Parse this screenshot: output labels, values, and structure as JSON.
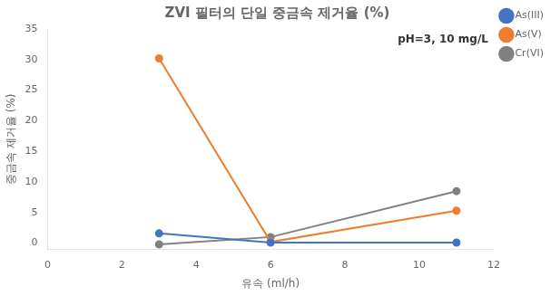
{
  "chart_data": {
    "type": "line",
    "title": "ZVI 필터의 단일 중금속 제거율 (%)",
    "xlabel": "유속 (ml/h)",
    "ylabel": "중금속 제거율 (%)",
    "annotation": "pH=3, 10 mg/L",
    "xlim": [
      0,
      12
    ],
    "ylim": [
      -1,
      35
    ],
    "xticks": [
      0,
      2,
      4,
      6,
      8,
      10,
      12
    ],
    "yticks": [
      0,
      5,
      10,
      15,
      20,
      25,
      30,
      35
    ],
    "grid": false,
    "legend": "upper right",
    "series": [
      {
        "name": "As(III)",
        "color": "#4472C4",
        "marker": "circle",
        "line_style": "solid",
        "x": [
          3,
          6,
          11
        ],
        "values": [
          1.6,
          0.1,
          0.1
        ]
      },
      {
        "name": "As(V)",
        "color": "#ED7D31",
        "marker": "circle",
        "line_style": "solid",
        "x": [
          3,
          6,
          11
        ],
        "values": [
          30.2,
          0.2,
          5.3
        ]
      },
      {
        "name": "Cr(VI)",
        "color": "#808080",
        "marker": "circle",
        "line_style": "solid",
        "x": [
          3,
          6,
          11
        ],
        "values": [
          -0.2,
          1.0,
          8.5
        ]
      }
    ]
  }
}
